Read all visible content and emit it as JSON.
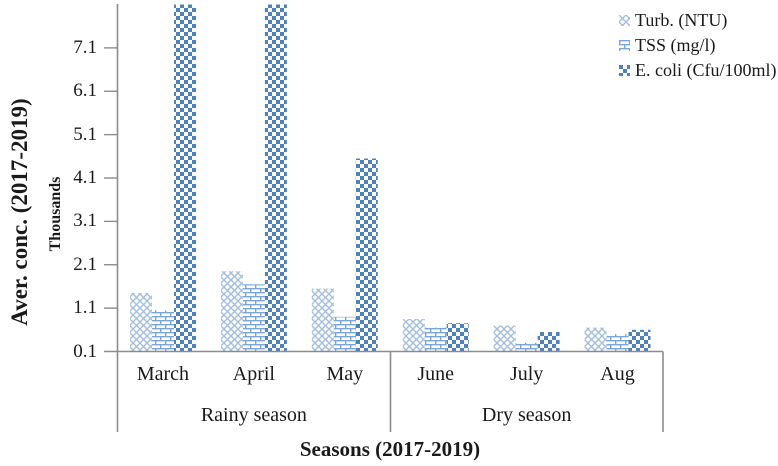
{
  "y_axis": {
    "title": "Aver. conc. (2017-2019)",
    "secondary_title": "Thousands",
    "ticks": [
      "0.1",
      "1.1",
      "2.1",
      "3.1",
      "4.1",
      "5.1",
      "6.1",
      "7.1"
    ]
  },
  "x_axis": {
    "title": "Seasons (2017-2019)"
  },
  "chart_data": {
    "type": "bar",
    "title": "",
    "categories": [
      "March",
      "April",
      "May",
      "June",
      "July",
      "Aug"
    ],
    "category_groups": [
      {
        "label": "Rainy season",
        "categories": [
          "March",
          "April",
          "May"
        ]
      },
      {
        "label": "Dry season",
        "categories": [
          "June",
          "July",
          "Aug"
        ]
      }
    ],
    "series": [
      {
        "name": "Turb. (NTU)",
        "pattern": "diagonal-crosshatch",
        "color": "#a3bede",
        "values": [
          1.45,
          1.95,
          1.55,
          0.85,
          0.7,
          0.65
        ]
      },
      {
        "name": "TSS (mg/l)",
        "pattern": "brick",
        "color": "#7da6d8",
        "values": [
          1.05,
          1.65,
          0.9,
          0.65,
          0.3,
          0.5
        ]
      },
      {
        "name": "E. coli (Cfu/100ml)",
        "pattern": "checkerboard",
        "color": "#4f81bd",
        "values": [
          8.1,
          8.1,
          4.55,
          0.75,
          0.55,
          0.6
        ]
      }
    ],
    "clipped_note": "E. coli bars for March and April exceed the axis maximum and are clipped at the top of the plot (> 8.1 thousand)",
    "xlabel": "Seasons (2017-2019)",
    "ylabel": "Aver. conc. (2017-2019)",
    "y_secondary_label": "Thousands",
    "ylim": [
      0.1,
      8.1
    ],
    "ytick_step": 1,
    "grid": false,
    "legend_position": "top-right",
    "axis_color": "#8c8c8c",
    "text_color": "#1a1a1a"
  }
}
